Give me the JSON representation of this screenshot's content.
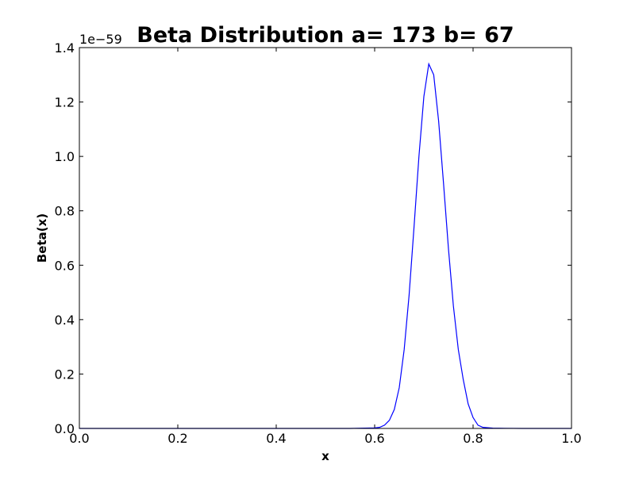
{
  "chart_data": {
    "type": "line",
    "title": "Beta Distribution a= 173 b= 67",
    "xlabel": "x",
    "ylabel": "Beta(x)",
    "y_offset_text": "1e−59",
    "xlim": [
      0.0,
      1.0
    ],
    "ylim": [
      0.0,
      1.4
    ],
    "x_ticks": [
      "0.0",
      "0.2",
      "0.4",
      "0.6",
      "0.8",
      "1.0"
    ],
    "y_ticks": [
      "0.0",
      "0.2",
      "0.4",
      "0.6",
      "0.8",
      "1.0",
      "1.2",
      "1.4"
    ],
    "grid": false,
    "series": [
      {
        "color": "#0000ff",
        "x": [
          0.0,
          0.55,
          0.6,
          0.61,
          0.62,
          0.63,
          0.64,
          0.65,
          0.66,
          0.67,
          0.68,
          0.69,
          0.7,
          0.71,
          0.72,
          0.73,
          0.74,
          0.75,
          0.76,
          0.77,
          0.78,
          0.79,
          0.8,
          0.81,
          0.82,
          0.84,
          0.9,
          1.0
        ],
        "y": [
          0.0,
          0.0,
          0.002,
          0.004,
          0.012,
          0.03,
          0.07,
          0.15,
          0.29,
          0.49,
          0.74,
          1.0,
          1.22,
          1.34,
          1.3,
          1.13,
          0.9,
          0.66,
          0.45,
          0.29,
          0.18,
          0.09,
          0.04,
          0.012,
          0.004,
          0.001,
          0.0,
          0.0
        ]
      }
    ]
  }
}
